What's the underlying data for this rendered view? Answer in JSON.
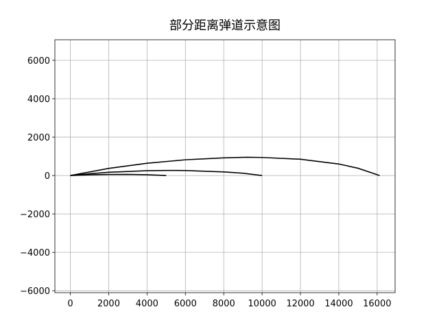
{
  "chart_data": {
    "type": "line",
    "title": "部分距离弹道示意图",
    "series": [
      {
        "color": "#000000",
        "x": [
          0,
          2000,
          4000,
          6000,
          8000,
          9200,
          10000,
          12000,
          14000,
          15000,
          16130
        ],
        "values": [
          0,
          370,
          640,
          820,
          920,
          950,
          940,
          850,
          600,
          380,
          0
        ]
      },
      {
        "color": "#000000",
        "x": [
          0,
          1000,
          2000,
          4000,
          5000,
          6000,
          8000,
          9000,
          10000
        ],
        "values": [
          0,
          90,
          170,
          250,
          265,
          260,
          190,
          120,
          0
        ]
      },
      {
        "color": "#000000",
        "x": [
          0,
          1000,
          2000,
          3000,
          4000,
          5000
        ],
        "values": [
          0,
          35,
          55,
          60,
          40,
          0
        ]
      }
    ],
    "xlim": [
      -806,
      16936
    ],
    "ylim": [
      -6100,
      7070
    ],
    "xticks": [
      0,
      2000,
      4000,
      6000,
      8000,
      10000,
      12000,
      14000,
      16000
    ],
    "yticks": [
      {
        "value": -6000,
        "label": "−6000"
      },
      {
        "value": -4000,
        "label": "−4000"
      },
      {
        "value": -2000,
        "label": "−2000"
      },
      0,
      2000,
      4000,
      6000
    ],
    "grid": true
  }
}
